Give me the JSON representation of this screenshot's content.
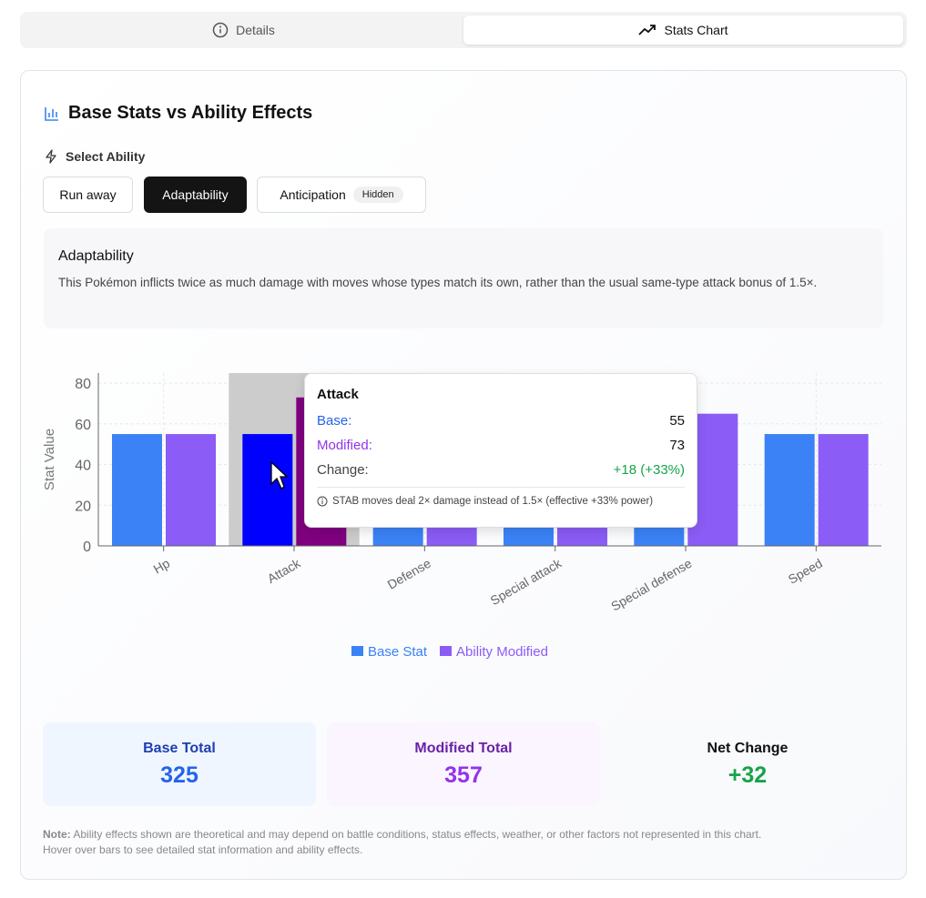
{
  "tabs": [
    {
      "label": "Details",
      "icon": "info-icon"
    },
    {
      "label": "Stats Chart",
      "icon": "trending-up-icon",
      "active": true
    }
  ],
  "title": "Base Stats vs Ability Effects",
  "select_label": "Select Ability",
  "abilities": [
    {
      "label": "Run away"
    },
    {
      "label": "Adaptability",
      "active": true
    },
    {
      "label": "Anticipation",
      "badge": "Hidden"
    }
  ],
  "description": {
    "title": "Adaptability",
    "text": "This Pokémon inflicts twice as much damage with moves whose types match its own, rather than the usual same-type attack bonus of 1.5×."
  },
  "chart_data": {
    "type": "bar",
    "categories": [
      "Hp",
      "Attack",
      "Defense",
      "Special attack",
      "Special defense",
      "Speed"
    ],
    "series": [
      {
        "name": "Base Stat",
        "color": "#3b82f6",
        "values": [
          55,
          55,
          50,
          45,
          65,
          55
        ]
      },
      {
        "name": "Ability Modified",
        "color": "#8b5cf6",
        "values": [
          55,
          73,
          50,
          59,
          65,
          55
        ]
      }
    ],
    "ylabel": "Stat Value",
    "yticks": [
      0,
      20,
      40,
      60,
      80
    ],
    "ylim": [
      0,
      85
    ],
    "grid": true,
    "legend": "bottom",
    "highlighted": "Attack",
    "highlight_colors": {
      "base": "#0000ff",
      "modified": "#800080"
    }
  },
  "tooltip": {
    "title": "Attack",
    "base_label": "Base:",
    "base": "55",
    "modified_label": "Modified:",
    "modified": "73",
    "change_label": "Change:",
    "change": "+18 (+33%)",
    "note": "STAB moves deal 2× damage instead of 1.5× (effective +33% power)"
  },
  "totals": [
    {
      "label": "Base Total",
      "value": "325",
      "color": "#1d4ed8",
      "bg": "#eff6ff"
    },
    {
      "label": "Modified Total",
      "value": "357",
      "color": "#7e22ce",
      "bg": "#faf5ff"
    },
    {
      "label": "Net Change",
      "value": "+32",
      "color": "#16a34a",
      "bg": "#f9fafb"
    }
  ],
  "note": {
    "bold": "Note:",
    "line1": " Ability effects shown are theoretical and may depend on battle conditions, status effects, weather, or other factors not represented in this chart.",
    "line2": "Hover over bars to see detailed stat information and ability effects."
  }
}
